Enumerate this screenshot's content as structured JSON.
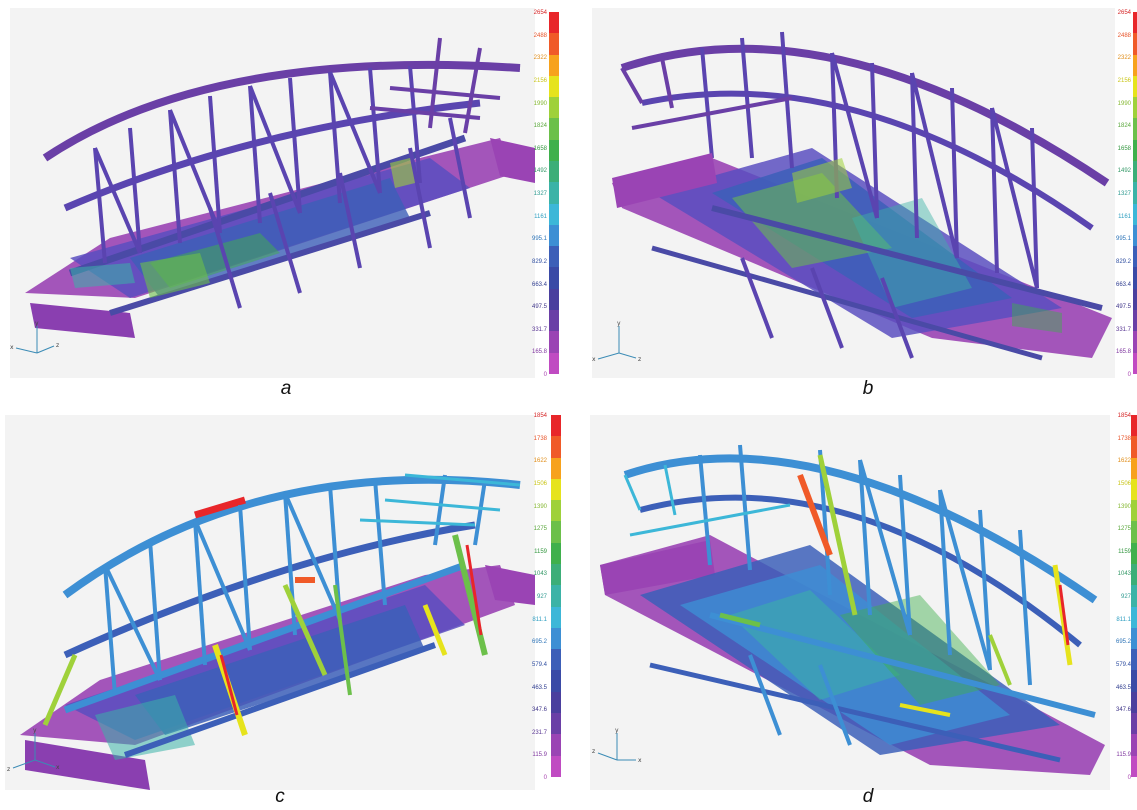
{
  "panels": [
    {
      "id": "a",
      "caption": "a",
      "axes": {
        "left": "x",
        "up": "y",
        "right": "z"
      },
      "colorbar": [
        "2654",
        "2488",
        "2322",
        "2156",
        "1990",
        "1824",
        "1658",
        "1492",
        "1327",
        "1161",
        "995.1",
        "829.2",
        "663.4",
        "497.5",
        "331.7",
        "165.8",
        "0"
      ]
    },
    {
      "id": "b",
      "caption": "b",
      "axes": {
        "left": "x",
        "up": "y",
        "right": "z"
      },
      "colorbar": [
        "2654",
        "2488",
        "2322",
        "2156",
        "1990",
        "1824",
        "1658",
        "1492",
        "1327",
        "1161",
        "995.1",
        "829.2",
        "663.4",
        "497.5",
        "331.7",
        "165.8",
        "0"
      ]
    },
    {
      "id": "c",
      "caption": "c",
      "axes": {
        "left": "z",
        "up": "y",
        "right": "x"
      },
      "colorbar": [
        "1854",
        "1738",
        "1622",
        "1506",
        "1390",
        "1275",
        "1159",
        "1043",
        "927",
        "811.1",
        "695.2",
        "579.4",
        "463.5",
        "347.6",
        "231.7",
        "115.9",
        "0"
      ]
    },
    {
      "id": "d",
      "caption": "d",
      "axes": {
        "left": "z",
        "up": "y",
        "right": "x"
      },
      "colorbar": [
        "1854",
        "1738",
        "1622",
        "1506",
        "1390",
        "1275",
        "1159",
        "1043",
        "927",
        "811.1",
        "695.2",
        "579.4",
        "463.5",
        "347.6",
        "",
        "115.9",
        "0"
      ]
    }
  ],
  "palette": [
    "#e8262a",
    "#f05a28",
    "#f7a21c",
    "#e6e31c",
    "#9fd13a",
    "#6cc04a",
    "#3fb04c",
    "#3cae78",
    "#3bb3a7",
    "#3cb7d8",
    "#3d8fd4",
    "#3c5fb8",
    "#3a4aa6",
    "#4a3f9e",
    "#6a3fa6",
    "#9a44b4",
    "#c04bc2"
  ],
  "label_colors": [
    "#d62728",
    "#e8542a",
    "#e08d18",
    "#c9c518",
    "#86b833",
    "#5aa73c",
    "#33963f",
    "#339866",
    "#2f9a90",
    "#2d9ec0",
    "#2f75b8",
    "#2f4ea0",
    "#2e3c8f",
    "#3e3488",
    "#583592",
    "#8138a0",
    "#a63eae"
  ]
}
